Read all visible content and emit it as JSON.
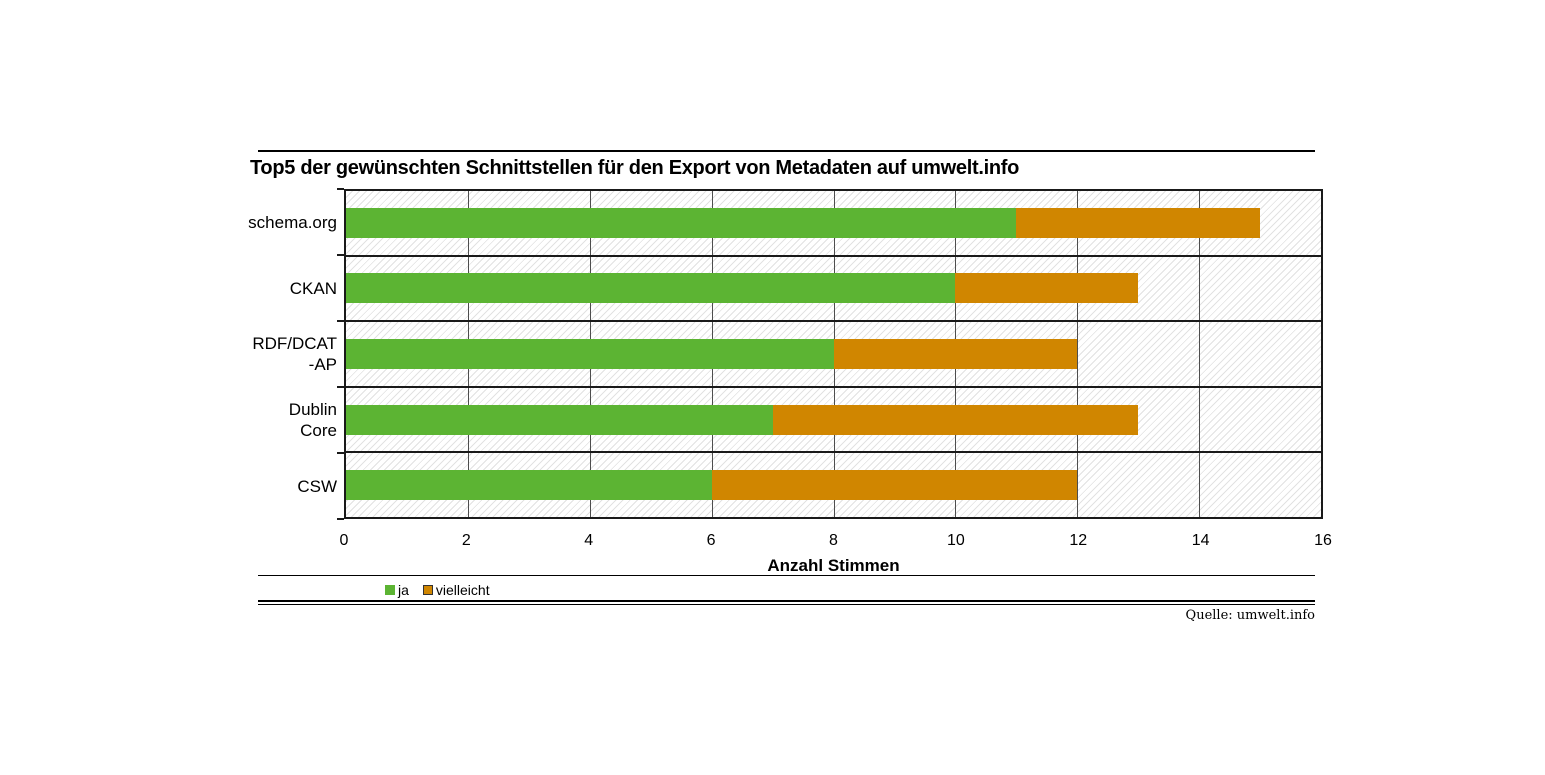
{
  "header": {
    "title": "Top5 der gewünschten Schnittstellen für den Export von Metadaten auf umwelt.info"
  },
  "footer": {
    "source": "Quelle: umwelt.info"
  },
  "colors": {
    "ja": "#5cb433",
    "vielleicht": "#d08600",
    "grid_line": "#4d4d4d",
    "row_border": "#1a1a1a",
    "hatch": "#e2e2e2"
  },
  "chart_data": {
    "type": "bar",
    "orientation": "horizontal",
    "stacked": true,
    "title": "Top5 der gewünschten Schnittstellen für den Export von Metadaten auf umwelt.info",
    "categories": [
      "schema.org",
      "CKAN",
      "RDF/DCAT\n-AP",
      "Dublin\nCore",
      "CSW"
    ],
    "series": [
      {
        "name": "ja",
        "color": "#5cb433",
        "values": [
          11,
          10,
          8,
          7,
          6
        ]
      },
      {
        "name": "vielleicht",
        "color": "#d08600",
        "values": [
          4,
          3,
          4,
          6,
          6
        ]
      }
    ],
    "totals": [
      15,
      13,
      12,
      13,
      12
    ],
    "xlabel": "Anzahl Stimmen",
    "xlim": [
      0,
      16
    ],
    "xticks": [
      0,
      2,
      4,
      6,
      8,
      10,
      12,
      14,
      16
    ],
    "grid": true,
    "legend_position": "bottom-left",
    "source": "Quelle: umwelt.info"
  }
}
